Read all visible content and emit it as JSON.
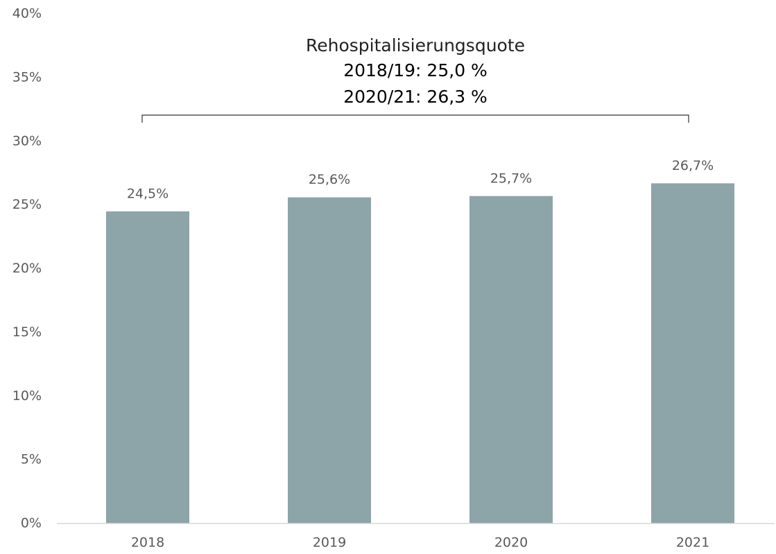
{
  "chart_data": {
    "type": "bar",
    "annotations": [
      "Rehospitalisierungsquote",
      "2018/19: 25,0 %",
      "2020/21: 26,3 %"
    ],
    "categories": [
      "2018",
      "2019",
      "2020",
      "2021"
    ],
    "values": [
      24.5,
      25.6,
      25.7,
      26.7
    ],
    "value_labels": [
      "24,5%",
      "25,6%",
      "25,7%",
      "26,7%"
    ],
    "color": "#8da4a8",
    "ylim": [
      0,
      40
    ],
    "yticks": [
      {
        "value": 0,
        "label": "0%"
      },
      {
        "value": 5,
        "label": "5%"
      },
      {
        "value": 10,
        "label": "10%"
      },
      {
        "value": 15,
        "label": "15%"
      },
      {
        "value": 20,
        "label": "20%"
      },
      {
        "value": 25,
        "label": "25%"
      },
      {
        "value": 30,
        "label": "30%"
      },
      {
        "value": 35,
        "label": "35%"
      },
      {
        "value": 40,
        "label": "40%"
      }
    ],
    "grid": false
  }
}
